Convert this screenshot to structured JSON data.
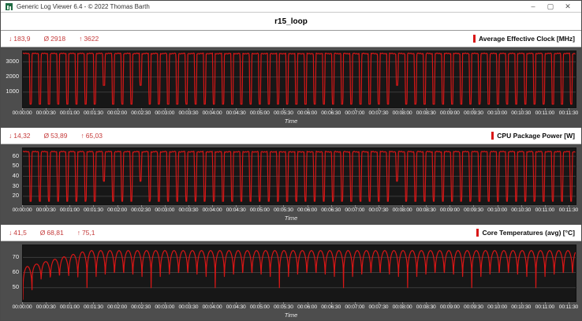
{
  "window": {
    "titlebar": {
      "title": "Generic Log Viewer 6.4 - © 2022 Thomas Barth",
      "minimize": "–",
      "maximize": "▢",
      "close": "✕"
    },
    "page_title": "r15_loop"
  },
  "glyphs": {
    "min": "↓",
    "avg": "Ø",
    "max": "↑"
  },
  "axis": {
    "xlabel": "Time",
    "duration_s": 700,
    "tick_interval_s": 30,
    "x_tick_labels": [
      "00:00:00",
      "00:00:30",
      "00:01:00",
      "00:01:30",
      "00:02:00",
      "00:02:30",
      "00:03:00",
      "00:03:30",
      "00:04:00",
      "00:04:30",
      "00:05:00",
      "00:05:30",
      "00:06:00",
      "00:06:30",
      "00:07:00",
      "00:07:30",
      "00:08:00",
      "00:08:30",
      "00:09:00",
      "00:09:30",
      "00:10:00",
      "00:10:30",
      "00:11:00",
      "00:11:30"
    ]
  },
  "chart_data": [
    {
      "type": "line",
      "title": "Average Effective Clock [MHz]",
      "series_color": "#d81616",
      "stats": {
        "min": "183,9",
        "avg": "2918",
        "max": "3622"
      },
      "ylim": [
        0,
        3700
      ],
      "y_ticks": [
        1000,
        2000,
        3000
      ],
      "xlabel": "Time",
      "grid": true,
      "legend_position": "top-right",
      "waveform": {
        "pattern": "plateau-dip",
        "period_s": 11.6,
        "plateau_value": 3550,
        "dip_value": 210,
        "dip_width_s": 3.4,
        "edge_s": 0.8,
        "shallow_dips": {
          "cycles": [
            8,
            12,
            40
          ],
          "value": 1450
        }
      }
    },
    {
      "type": "line",
      "title": "CPU Package Power [W]",
      "series_color": "#d81616",
      "stats": {
        "min": "14,32",
        "avg": "53,89",
        "max": "65,03"
      },
      "ylim": [
        12,
        68
      ],
      "y_ticks": [
        20,
        30,
        40,
        50,
        60
      ],
      "xlabel": "Time",
      "grid": true,
      "legend_position": "top-right",
      "waveform": {
        "pattern": "plateau-dip",
        "period_s": 11.6,
        "plateau_value": 64.5,
        "dip_value": 15,
        "dip_width_s": 3.6,
        "edge_s": 1.1,
        "shallow_dips": {
          "cycles": [
            8,
            12,
            40
          ],
          "value": 35
        }
      }
    },
    {
      "type": "line",
      "title": "Core Temperatures (avg) [°C]",
      "series_color": "#d81616",
      "stats": {
        "min": "41,5",
        "avg": "68,81",
        "max": "75,1"
      },
      "ylim": [
        41,
        78
      ],
      "y_ticks": [
        50,
        60,
        70
      ],
      "xlabel": "Time",
      "grid": true,
      "legend_position": "top-right",
      "waveform": {
        "pattern": "hump",
        "period_s": 11.6,
        "peak_value": 74.5,
        "dip_value": 50,
        "roundness": 0.28,
        "warmup": {
          "start_value": 42,
          "start_peak": 64,
          "per_cycle": 1.6
        }
      }
    }
  ]
}
